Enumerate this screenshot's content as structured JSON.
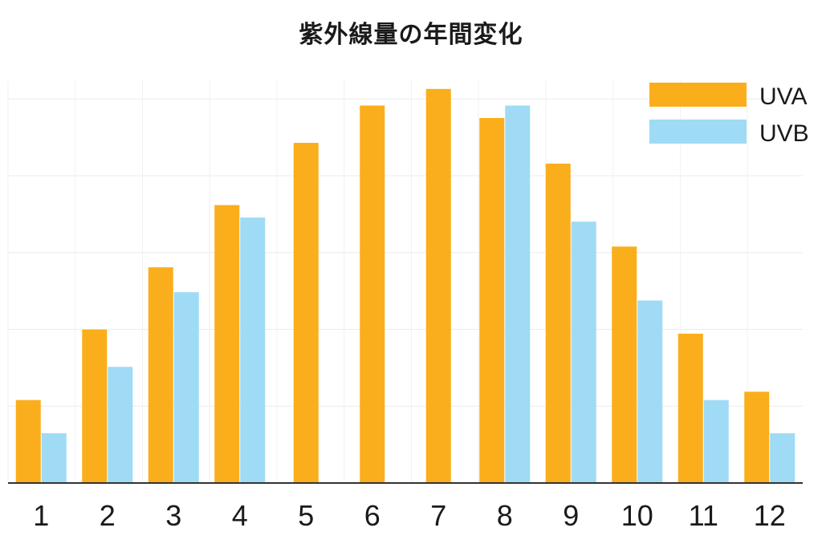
{
  "chart_data": {
    "type": "bar",
    "title": "紫外線量の年間変化",
    "xlabel": "",
    "ylabel": "",
    "categories": [
      "1",
      "2",
      "3",
      "4",
      "5",
      "6",
      "7",
      "8",
      "9",
      "10",
      "11",
      "12"
    ],
    "ylim": [
      0,
      100
    ],
    "grid": true,
    "legend_position": "top-right",
    "series": [
      {
        "name": "UVA",
        "color": "#FBAE1B",
        "values": [
          20,
          37,
          52,
          67,
          82,
          91,
          95,
          88,
          77,
          57,
          36,
          22
        ]
      },
      {
        "name": "UVB",
        "color": "#9FDBF5",
        "values": [
          12,
          28,
          46,
          64,
          null,
          null,
          null,
          91,
          63,
          44,
          20,
          12
        ]
      }
    ]
  }
}
